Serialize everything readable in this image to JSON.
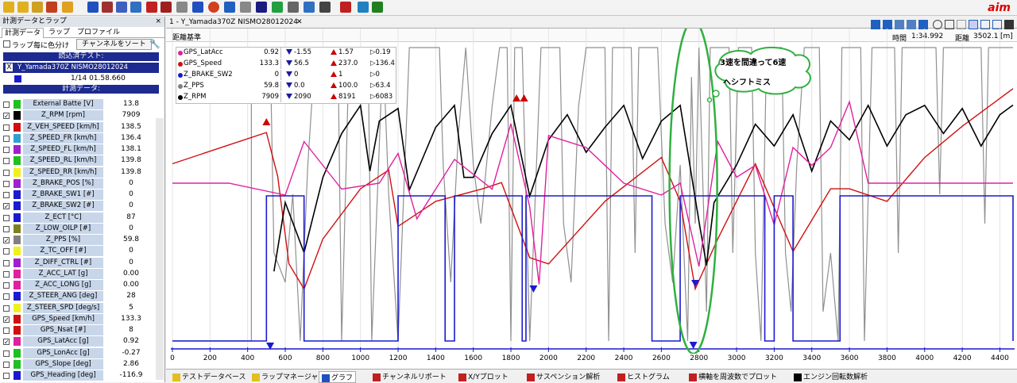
{
  "toolbar": {
    "logo": "aim"
  },
  "left_panel": {
    "title": "計測データとラップ",
    "tabs": [
      "計測データ",
      "ラップ",
      "プロファイル"
    ],
    "lap_color_label": "ラップ毎に色分け",
    "sort_button": "チャンネルをソート",
    "loaded_test_header": "読込済テスト:",
    "test_name": "Y_Yamada370Z NISMO28012024",
    "lap_time": "1/14 01.58.660",
    "measure_header": "計測データ:",
    "channels": [
      {
        "name": "External Batte",
        "unit": "[V]",
        "value": "13.8",
        "color": "#20c020",
        "checked": false
      },
      {
        "name": "Z_RPM",
        "unit": "[rpm]",
        "value": "7909",
        "color": "#000000",
        "checked": true
      },
      {
        "name": "Z_VEH_SPEED",
        "unit": "[km/h]",
        "value": "138.5",
        "color": "#d01010",
        "checked": false
      },
      {
        "name": "Z_SPEED_FR",
        "unit": "[km/h]",
        "value": "136.4",
        "color": "#30a0d0",
        "checked": false
      },
      {
        "name": "Z_SPEED_FL",
        "unit": "[km/h]",
        "value": "138.1",
        "color": "#a020d0",
        "checked": false
      },
      {
        "name": "Z_SPEED_RL",
        "unit": "[km/h]",
        "value": "139.8",
        "color": "#20c020",
        "checked": false
      },
      {
        "name": "Z_SPEED_RR",
        "unit": "[km/h]",
        "value": "139.8",
        "color": "#f0f020",
        "checked": false
      },
      {
        "name": "Z_BRAKE_POS",
        "unit": "[%]",
        "value": "0",
        "color": "#a020d0",
        "checked": false
      },
      {
        "name": "Z_BRAKE_SW1",
        "unit": "[#]",
        "value": "0",
        "color": "#1a1ad0",
        "checked": false
      },
      {
        "name": "Z_BRAKE_SW2",
        "unit": "[#]",
        "value": "0",
        "color": "#1a1ad0",
        "checked": true
      },
      {
        "name": "Z_ECT",
        "unit": "[°C]",
        "value": "87",
        "color": "#1a1ad0",
        "checked": false
      },
      {
        "name": "Z_LOW_OILP",
        "unit": "[#]",
        "value": "0",
        "color": "#808020",
        "checked": false
      },
      {
        "name": "Z_PPS",
        "unit": "[%]",
        "value": "59.8",
        "color": "#808080",
        "checked": true
      },
      {
        "name": "Z_TC_OFF",
        "unit": "[#]",
        "value": "0",
        "color": "#f0f020",
        "checked": false
      },
      {
        "name": "Z_DIFF_CTRL",
        "unit": "[#]",
        "value": "0",
        "color": "#a020d0",
        "checked": false
      },
      {
        "name": "Z_ACC_LAT",
        "unit": "[g]",
        "value": "0.00",
        "color": "#e020a0",
        "checked": false
      },
      {
        "name": "Z_ACC_LONG",
        "unit": "[g]",
        "value": "0.00",
        "color": "#e020a0",
        "checked": false
      },
      {
        "name": "Z_STEER_ANG",
        "unit": "[deg]",
        "value": "28",
        "color": "#1a1ad0",
        "checked": false
      },
      {
        "name": "Z_STEER_SPD",
        "unit": "[deg/s]",
        "value": "5",
        "color": "#f0f020",
        "checked": false
      },
      {
        "name": "GPS_Speed",
        "unit": "[km/h]",
        "value": "133.3",
        "color": "#d01010",
        "checked": true
      },
      {
        "name": "GPS_Nsat",
        "unit": "[#]",
        "value": "8",
        "color": "#d01010",
        "checked": false
      },
      {
        "name": "GPS_LatAcc",
        "unit": "[g]",
        "value": "0.92",
        "color": "#e020a0",
        "checked": true
      },
      {
        "name": "GPS_LonAcc",
        "unit": "[g]",
        "value": "-0.27",
        "color": "#20c020",
        "checked": false
      },
      {
        "name": "GPS_Slope",
        "unit": "[deg]",
        "value": "2.86",
        "color": "#20c020",
        "checked": false
      },
      {
        "name": "GPS_Heading",
        "unit": "[deg]",
        "value": "-116.9",
        "color": "#1a1ad0",
        "checked": false
      }
    ]
  },
  "graph": {
    "doc_tab": "1 - Y_Yamada370Z NISMO28012024",
    "reference": "距離基準",
    "time_label": "時間",
    "time_value": "1:34.992",
    "distance_label": "距離",
    "distance_value": "3502.1",
    "distance_unit": "[m]",
    "annotation_line1": "3速を間違って6速",
    "annotation_line2": "へシフトミス",
    "legend": [
      {
        "name": "GPS_LatAcc",
        "value": "0.92",
        "min": "-1.55",
        "max": "1.57",
        "avg": "0.19",
        "color": "#e020a0"
      },
      {
        "name": "GPS_Speed",
        "value": "133.3",
        "min": "56.5",
        "max": "237.0",
        "avg": "136.4",
        "color": "#d01010"
      },
      {
        "name": "Z_BRAKE_SW2",
        "value": "0",
        "min": "0",
        "max": "1",
        "avg": "0",
        "color": "#1a1ad0"
      },
      {
        "name": "Z_PPS",
        "value": "59.8",
        "min": "0.0",
        "max": "100.0",
        "avg": "63.4",
        "color": "#808080"
      },
      {
        "name": "Z_RPM",
        "value": "7909",
        "min": "2090",
        "max": "8191",
        "avg": "6083",
        "color": "#000000"
      }
    ]
  },
  "chart_data": {
    "type": "line",
    "xlabel": "",
    "x_ticks": [
      0,
      200,
      400,
      600,
      800,
      1000,
      1200,
      1400,
      1600,
      1800,
      2000,
      2200,
      2400,
      2600,
      2800,
      3000,
      3200,
      3400,
      3600,
      3800,
      4000,
      4200,
      4400
    ],
    "xlim": [
      0,
      4470
    ],
    "series": [
      {
        "name": "GPS_Speed",
        "color": "#d01010",
        "x": [
          0,
          300,
          500,
          560,
          620,
          700,
          800,
          1000,
          1150,
          1200,
          1400,
          1650,
          1750,
          1900,
          2000,
          2300,
          2600,
          2700,
          2780,
          2900,
          3100,
          3300,
          3500,
          3600,
          3800,
          4000,
          4200,
          4470
        ],
        "y": [
          170,
          185,
          195,
          160,
          90,
          70,
          110,
          150,
          165,
          120,
          140,
          150,
          155,
          95,
          90,
          140,
          175,
          140,
          70,
          110,
          170,
          100,
          150,
          150,
          140,
          175,
          200,
          230
        ]
      },
      {
        "name": "Z_RPM",
        "color": "#000000",
        "x": [
          0,
          500,
          540,
          600,
          700,
          800,
          900,
          1000,
          1050,
          1100,
          1200,
          1260,
          1400,
          1500,
          1550,
          1600,
          1700,
          1800,
          1900,
          2000,
          2100,
          2200,
          2300,
          2400,
          2500,
          2600,
          2700,
          2800,
          2840,
          2880,
          3000,
          3100,
          3200,
          3300,
          3400,
          3500,
          3600,
          3700,
          3800,
          3900,
          4000,
          4100,
          4200,
          4300,
          4400,
          4470
        ],
        "y": [
          null,
          null,
          2600,
          4800,
          3200,
          5600,
          7000,
          7900,
          5800,
          7400,
          7800,
          5200,
          7200,
          7900,
          5600,
          5600,
          7000,
          7900,
          5000,
          6800,
          7600,
          6400,
          7200,
          7900,
          6200,
          7400,
          7900,
          4200,
          2800,
          4800,
          6000,
          7300,
          6600,
          7600,
          5800,
          7400,
          6800,
          7900,
          6600,
          7600,
          7900,
          7000,
          7800,
          6600,
          7600,
          7909
        ]
      },
      {
        "name": "GPS_LatAcc",
        "color": "#e020a0",
        "x": [
          0,
          300,
          600,
          700,
          900,
          1100,
          1200,
          1300,
          1500,
          1700,
          1800,
          1900,
          1950,
          2000,
          2200,
          2400,
          2600,
          2700,
          2800,
          2900,
          3000,
          3100,
          3200,
          3300,
          3400,
          3500,
          3600,
          3700,
          3800,
          4000,
          4200,
          4470
        ],
        "y": [
          0.2,
          0.2,
          0.0,
          0.9,
          0.1,
          0.2,
          0.7,
          -0.4,
          0.6,
          0.1,
          1.2,
          -0.2,
          -1.5,
          1.0,
          0.8,
          0.2,
          0.0,
          0.2,
          -1.2,
          0.9,
          0.3,
          0.5,
          -0.5,
          0.8,
          0.5,
          0.8,
          1.57,
          0.2,
          0.2,
          0.2,
          0.2,
          0.2
        ]
      },
      {
        "name": "Z_PPS",
        "color": "#808080",
        "y_range": [
          0,
          100
        ]
      },
      {
        "name": "Z_BRAKE_SW2",
        "color": "#1a1ad0",
        "x": [
          0,
          500,
          700,
          1150,
          1200,
          1450,
          1500,
          1860,
          1880,
          2550,
          2700,
          3150,
          3200,
          3300,
          3550,
          4470
        ],
        "y": [
          0,
          1,
          0,
          0,
          1,
          0,
          1,
          0,
          1,
          0,
          1,
          0,
          1,
          0,
          1,
          0
        ]
      }
    ]
  }
}
